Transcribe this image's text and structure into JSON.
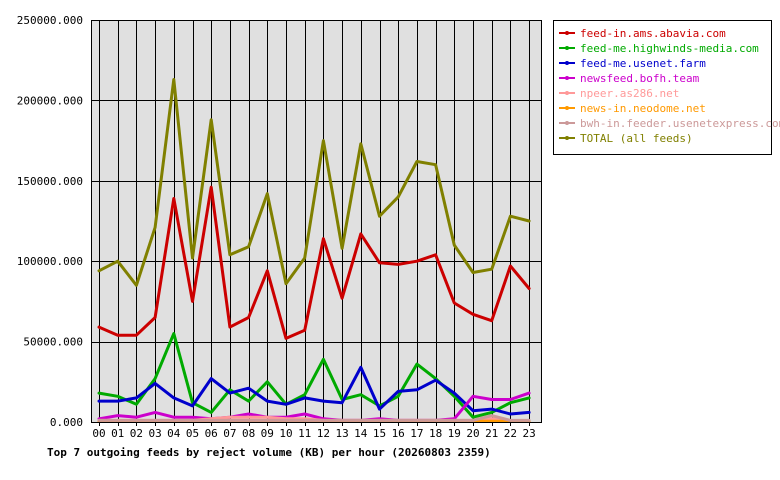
{
  "chart_data": {
    "type": "line",
    "title": "Top 7 outgoing feeds by reject volume (KB) per hour (20260803 2359)",
    "categories": [
      "00",
      "01",
      "02",
      "03",
      "04",
      "05",
      "06",
      "07",
      "08",
      "09",
      "10",
      "11",
      "12",
      "13",
      "14",
      "15",
      "16",
      "17",
      "18",
      "19",
      "20",
      "21",
      "22",
      "23"
    ],
    "ylim": [
      0,
      250000
    ],
    "yticks": [
      0,
      50000,
      100000,
      150000,
      200000,
      250000
    ],
    "ytick_labels": [
      "0.000",
      "50000.000",
      "100000.000",
      "150000.000",
      "200000.000",
      "250000.000"
    ],
    "grid": true,
    "legend": "right",
    "series": [
      {
        "name": "feed-in.ams.abavia.com",
        "color": "#cc0000",
        "values": [
          59000,
          54000,
          54000,
          65000,
          139000,
          75000,
          146000,
          59000,
          65000,
          94000,
          52000,
          57000,
          114000,
          77000,
          117000,
          99000,
          98000,
          100000,
          104000,
          74000,
          67000,
          63000,
          97000,
          83000
        ]
      },
      {
        "name": "feed-me.highwinds-media.com",
        "color": "#00aa00",
        "values": [
          18000,
          16000,
          11000,
          27000,
          55000,
          12000,
          6000,
          20000,
          13000,
          25000,
          11000,
          17000,
          39000,
          14000,
          17000,
          10000,
          16000,
          36000,
          27000,
          16000,
          3000,
          6000,
          12000,
          15000
        ]
      },
      {
        "name": "feed-me.usenet.farm",
        "color": "#0000cc",
        "values": [
          13000,
          13000,
          15000,
          24000,
          15000,
          10000,
          27000,
          18000,
          21000,
          13000,
          11000,
          15000,
          13000,
          12000,
          34000,
          8000,
          19000,
          20000,
          26000,
          18000,
          7000,
          8000,
          5000,
          6000
        ]
      },
      {
        "name": "newsfeed.bofh.team",
        "color": "#cc00cc",
        "values": [
          2000,
          4000,
          3000,
          6000,
          3000,
          3000,
          2000,
          3000,
          5000,
          3000,
          3000,
          5000,
          2000,
          1000,
          1000,
          2000,
          1000,
          1000,
          1000,
          2000,
          16000,
          14000,
          14000,
          18000
        ]
      },
      {
        "name": "npeer.as286.net",
        "color": "#ff9999",
        "values": [
          1000,
          1000,
          1000,
          1000,
          1000,
          1000,
          2000,
          3000,
          3000,
          3000,
          2000,
          2000,
          1000,
          1000,
          1000,
          1000,
          1000,
          1000,
          1000,
          1000,
          1000,
          2000,
          1000,
          500
        ]
      },
      {
        "name": "news-in.neodome.net",
        "color": "#ff9900",
        "values": [
          500,
          500,
          500,
          500,
          500,
          500,
          500,
          500,
          500,
          500,
          500,
          500,
          500,
          500,
          500,
          500,
          500,
          500,
          500,
          500,
          500,
          500,
          500,
          500
        ]
      },
      {
        "name": "bwh-in.feeder.usenetexpress.com",
        "color": "#cc9999",
        "values": [
          1000,
          1000,
          1000,
          1000,
          1000,
          1000,
          1000,
          1000,
          1000,
          1000,
          1000,
          1000,
          1000,
          1000,
          1000,
          1000,
          1000,
          1000,
          1000,
          1000,
          1000,
          4000,
          1000,
          1000
        ]
      },
      {
        "name": "TOTAL (all feeds)",
        "color": "#808000",
        "values": [
          94000,
          100000,
          85000,
          121000,
          213000,
          102000,
          188000,
          104000,
          109000,
          142000,
          86000,
          102000,
          175000,
          108000,
          173000,
          128000,
          140000,
          162000,
          160000,
          110000,
          93000,
          95000,
          128000,
          125000
        ]
      }
    ]
  }
}
